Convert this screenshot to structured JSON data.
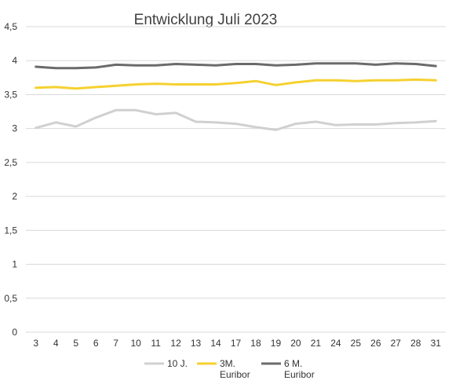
{
  "chart_data": {
    "type": "line",
    "title": "Entwicklung Juli 2023",
    "categories": [
      "3",
      "4",
      "5",
      "6",
      "7",
      "10",
      "11",
      "12",
      "13",
      "14",
      "17",
      "18",
      "19",
      "20",
      "21",
      "24",
      "25",
      "26",
      "27",
      "28",
      "31"
    ],
    "ylim": [
      0,
      4.5
    ],
    "yticks": [
      "0",
      "0,5",
      "1",
      "1,5",
      "2",
      "2,5",
      "3",
      "3,5",
      "4",
      "4,5"
    ],
    "ytick_values": [
      0,
      0.5,
      1,
      1.5,
      2,
      2.5,
      3,
      3.5,
      4,
      4.5
    ],
    "grid": true,
    "legend_position": "bottom",
    "series": [
      {
        "name": "10 J.",
        "color": "#d0d0d0",
        "values": [
          3.01,
          3.09,
          3.03,
          3.16,
          3.27,
          3.27,
          3.21,
          3.23,
          3.1,
          3.09,
          3.07,
          3.02,
          2.98,
          3.07,
          3.1,
          3.05,
          3.06,
          3.06,
          3.08,
          3.09,
          3.11
        ]
      },
      {
        "name": "3M. Euribor",
        "legend_lines": [
          "3M.",
          "Euribor"
        ],
        "color": "#f5d130",
        "values": [
          3.6,
          3.61,
          3.59,
          3.61,
          3.63,
          3.65,
          3.66,
          3.65,
          3.65,
          3.65,
          3.67,
          3.7,
          3.64,
          3.68,
          3.71,
          3.71,
          3.7,
          3.71,
          3.71,
          3.72,
          3.71
        ]
      },
      {
        "name": "6 M. Euribor",
        "legend_lines": [
          "6 M.",
          "Euribor"
        ],
        "color": "#6b6b6b",
        "values": [
          3.91,
          3.89,
          3.89,
          3.9,
          3.94,
          3.93,
          3.93,
          3.95,
          3.94,
          3.93,
          3.95,
          3.95,
          3.93,
          3.94,
          3.96,
          3.96,
          3.96,
          3.94,
          3.96,
          3.95,
          3.92
        ]
      }
    ]
  }
}
